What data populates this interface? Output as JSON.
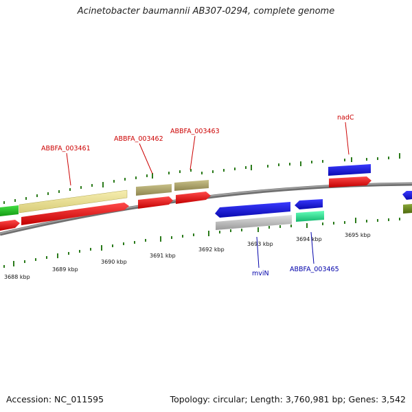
{
  "title": "Acinetobacter baumannii AB307-0294, complete genome",
  "footer": {
    "accession": "Accession: NC_011595",
    "summary": "Topology: circular; Length: 3,760,981 bp; Genes: 3,542"
  },
  "ticks": [
    "3688 kbp",
    "3689 kbp",
    "3690 kbp",
    "3691 kbp",
    "3692 kbp",
    "3693 kbp",
    "3694 kbp",
    "3695 kbp"
  ],
  "gene_labels": {
    "abbfa_003461": "ABBFA_003461",
    "abbfa_003462": "ABBFA_003462",
    "abbfa_003463": "ABBFA_003463",
    "nadc": "nadC",
    "mvin": "mviN",
    "abbfa_003465": "ABBFA_003465"
  },
  "colors": {
    "forward_label": "#cc0000",
    "reverse_label": "#0000aa",
    "backbone": "#808080",
    "tick": "#2a7a1a",
    "cds": "#ee1111",
    "gene_blue": "#1515dd",
    "gene_khaki": "#b8b070",
    "gene_cream": "#f1e79a",
    "gene_green": "#22cc22",
    "gene_gray": "#c8c8c8",
    "gene_mint": "#33ee99",
    "gene_olive": "#6a8a1a"
  }
}
